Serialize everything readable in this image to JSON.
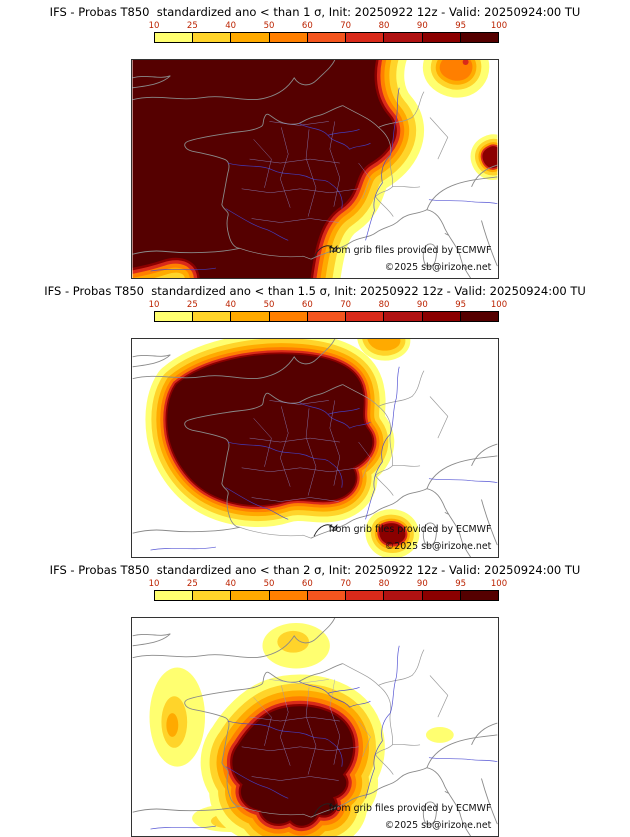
{
  "page": {
    "background": "#ffffff"
  },
  "colorbar": {
    "tick_labels": [
      "10",
      "25",
      "40",
      "50",
      "60",
      "70",
      "80",
      "90",
      "95",
      "100"
    ],
    "segment_colors": [
      "#ffff70",
      "#ffd42a",
      "#ffaa00",
      "#ff7f00",
      "#f4551e",
      "#d92a1a",
      "#b01212",
      "#8b0000",
      "#550000"
    ],
    "tick_color": "#bb2200"
  },
  "map_footer": {
    "credit": "from grib files provided by ECMWF",
    "copyright": "©2025 sb@irizone.net"
  },
  "panels": [
    {
      "id": "sigma-1",
      "threshold_sigma": "1",
      "title": "IFS - Probas T850  standardized ano < than 1 σ, Init: 20250922 12z - Valid: 20250924:00 TU"
    },
    {
      "id": "sigma-1.5",
      "threshold_sigma": "1.5",
      "title": "IFS - Probas T850  standardized ano < than 1.5 σ, Init: 20250922 12z - Valid: 20250924:00 TU"
    },
    {
      "id": "sigma-2",
      "threshold_sigma": "2",
      "title": "IFS - Probas T850  standardized ano < than 2 σ, Init: 20250922 12z - Valid: 20250924:00 TU"
    }
  ]
}
